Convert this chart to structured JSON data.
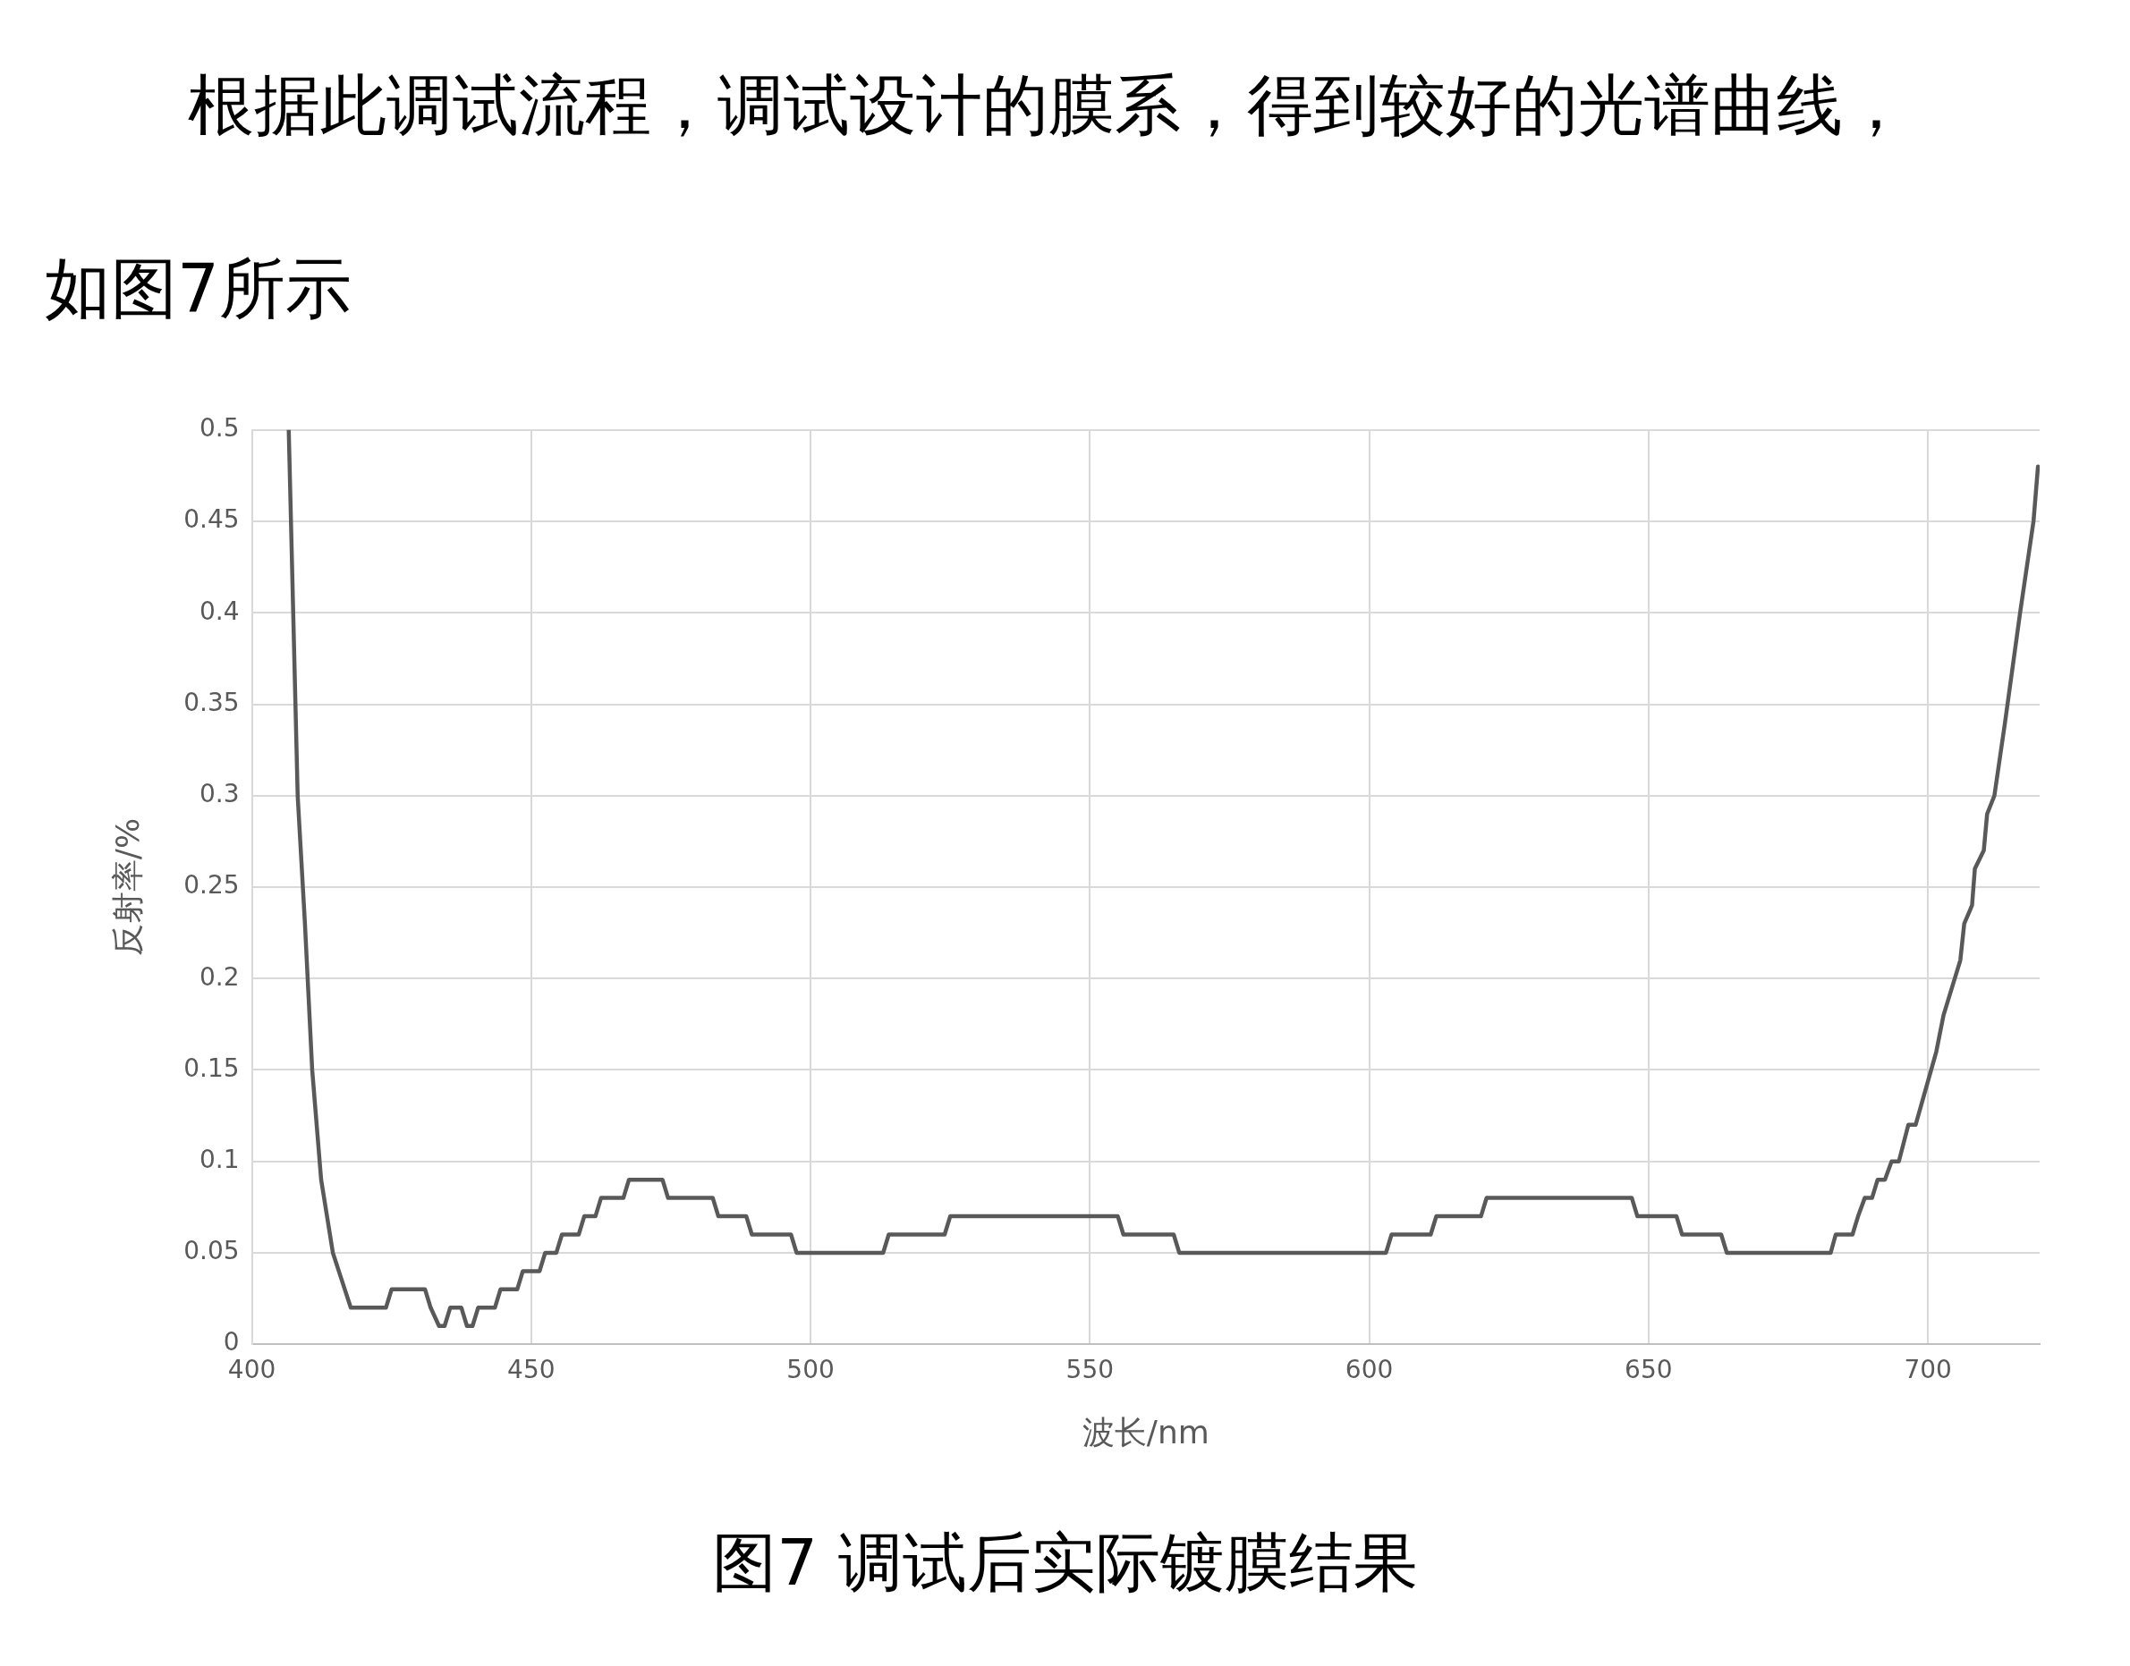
{
  "chart_data": {
    "type": "line",
    "subtitle": "根据此调试流程，调试设计的膜系，得到较好的光谱曲线，如图7所示",
    "title": "图7  调试后实际镀膜结果",
    "xlabel": "波长/nm",
    "ylabel": "反射率/%",
    "x": [
      406.6,
      407.4,
      408.2,
      409.5,
      410.8,
      412.4,
      414.5,
      416.1,
      417.7,
      424,
      425,
      431,
      432,
      433.5,
      434.5,
      435.5,
      437.5,
      438.5,
      439.5,
      440.5,
      443.5,
      444.5,
      447.5,
      448.5,
      451.5,
      452.5,
      454.5,
      455.5,
      458.5,
      459.5,
      461.5,
      462.5,
      466.5,
      467.5,
      473.5,
      474.5,
      482.5,
      483.5,
      488.5,
      489.5,
      496.5,
      497.5,
      513,
      514,
      524,
      525,
      555,
      556,
      565,
      566,
      603,
      604,
      611,
      612,
      620,
      621,
      647,
      648,
      655,
      656,
      663,
      664,
      682.6,
      683.5,
      686.5,
      687.5,
      688.7,
      690,
      691,
      692.3,
      693.5,
      694.8,
      696.5,
      697.8,
      701.5,
      702.8,
      705.8,
      706.5,
      707.9,
      708.4,
      710,
      710.6,
      711.9,
      713.8,
      716.5,
      718.9,
      719.7
    ],
    "series": [
      {
        "color": "#595959",
        "values": [
          0.5,
          0.4,
          0.3,
          0.23,
          0.15,
          0.09,
          0.05,
          0.035,
          0.02,
          0.02,
          0.03,
          0.03,
          0.02,
          0.01,
          0.01,
          0.02,
          0.02,
          0.01,
          0.01,
          0.02,
          0.02,
          0.03,
          0.03,
          0.04,
          0.04,
          0.05,
          0.05,
          0.06,
          0.06,
          0.07,
          0.07,
          0.08,
          0.08,
          0.09,
          0.09,
          0.08,
          0.08,
          0.07,
          0.07,
          0.06,
          0.06,
          0.05,
          0.05,
          0.06,
          0.06,
          0.07,
          0.07,
          0.06,
          0.06,
          0.05,
          0.05,
          0.06,
          0.06,
          0.07,
          0.07,
          0.08,
          0.08,
          0.07,
          0.07,
          0.06,
          0.06,
          0.05,
          0.05,
          0.06,
          0.06,
          0.07,
          0.08,
          0.08,
          0.09,
          0.09,
          0.1,
          0.1,
          0.12,
          0.12,
          0.16,
          0.18,
          0.21,
          0.23,
          0.24,
          0.26,
          0.27,
          0.29,
          0.3,
          0.34,
          0.4,
          0.45,
          0.48
        ]
      }
    ],
    "xlim": [
      400,
      720
    ],
    "xticks": [
      400,
      450,
      500,
      550,
      600,
      650,
      700
    ],
    "ylim": [
      0,
      0.5
    ],
    "yticks": [
      0,
      0.05,
      0.1,
      0.15,
      0.2,
      0.25,
      0.3,
      0.35,
      0.4,
      0.45,
      0.5
    ],
    "grid": true,
    "legend": false,
    "marker": "none",
    "line_style": "solid"
  }
}
